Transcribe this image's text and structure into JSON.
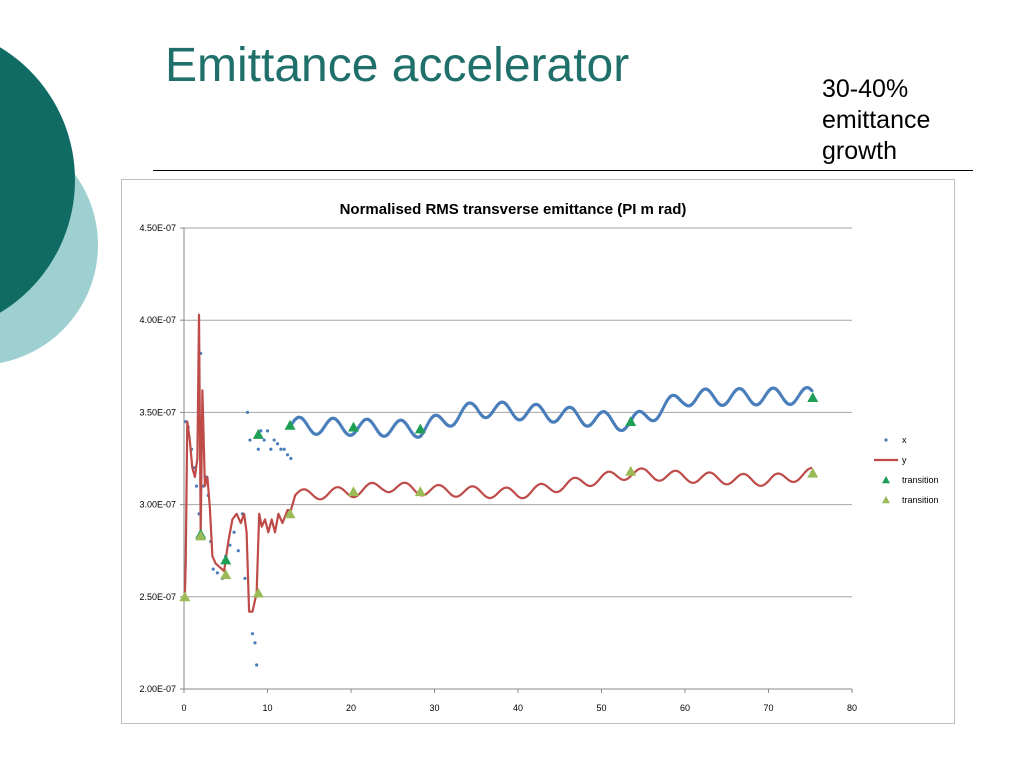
{
  "slide": {
    "title": "Emittance accelerator",
    "note_lines": [
      "30-40%",
      "emittance",
      "growth"
    ]
  },
  "theme": {
    "title_color": "#1f6f6b",
    "circle_dark": "#0f6b63",
    "circle_light": "#9fd0d1",
    "series_x_color": "#4a7ebb",
    "series_y_color": "#be4b48",
    "marker_dark": "#1f9f55",
    "marker_light": "#9bbb59"
  },
  "chart_data": {
    "type": "scatter",
    "title": "Normalised RMS transverse emittance (PI m rad)",
    "xlim": [
      0,
      80
    ],
    "ylim": [
      2e-07,
      4.5e-07
    ],
    "x_ticks": [
      "0",
      "10",
      "20",
      "30",
      "40",
      "50",
      "60",
      "70",
      "80"
    ],
    "y_ticks": [
      "2.00E-07",
      "2.50E-07",
      "3.00E-07",
      "3.50E-07",
      "4.00E-07",
      "4.50E-07"
    ],
    "grid": "horizontal",
    "legend_position": "right",
    "series": [
      {
        "name": "x",
        "style": "dots",
        "color": "#4a7ebb",
        "points": [
          [
            0.2,
            3.45e-07
          ],
          [
            0.5,
            3.42e-07
          ],
          [
            0.9,
            3.3e-07
          ],
          [
            1.2,
            3.2e-07
          ],
          [
            1.5,
            3.1e-07
          ],
          [
            1.8,
            2.95e-07
          ],
          [
            2.0,
            3.82e-07
          ],
          [
            2.3,
            3.1e-07
          ],
          [
            2.6,
            3.15e-07
          ],
          [
            2.9,
            3.05e-07
          ],
          [
            3.2,
            2.8e-07
          ],
          [
            3.5,
            2.65e-07
          ],
          [
            4.0,
            2.63e-07
          ],
          [
            4.6,
            2.6e-07
          ],
          [
            5.0,
            2.72e-07
          ],
          [
            5.5,
            2.78e-07
          ],
          [
            6.0,
            2.85e-07
          ],
          [
            6.5,
            2.75e-07
          ],
          [
            7.0,
            2.95e-07
          ],
          [
            7.3,
            2.6e-07
          ],
          [
            7.6,
            3.5e-07
          ],
          [
            7.9,
            3.35e-07
          ],
          [
            8.2,
            2.3e-07
          ],
          [
            8.5,
            2.25e-07
          ],
          [
            8.7,
            2.13e-07
          ],
          [
            8.9,
            3.3e-07
          ],
          [
            9.2,
            3.4e-07
          ],
          [
            9.6,
            3.35e-07
          ],
          [
            10.0,
            3.4e-07
          ],
          [
            10.4,
            3.3e-07
          ],
          [
            10.8,
            3.35e-07
          ],
          [
            11.2,
            3.33e-07
          ],
          [
            11.6,
            3.3e-07
          ],
          [
            12.0,
            3.3e-07
          ],
          [
            12.4,
            3.27e-07
          ],
          [
            12.8,
            3.25e-07
          ]
        ],
        "oscillation": {
          "from": 12.8,
          "to": 75.3,
          "anchors": [
            [
              12.8,
              3.43e-07
            ],
            [
              20.3,
              3.42e-07
            ],
            [
              28.3,
              3.41e-07
            ],
            [
              35,
              3.52e-07
            ],
            [
              45,
              3.49e-07
            ],
            [
              53.5,
              3.44e-07
            ],
            [
              60,
              3.58e-07
            ],
            [
              75.3,
              3.59e-07
            ]
          ],
          "amplitude": 4.5e-09
        }
      },
      {
        "name": "y",
        "style": "line",
        "color": "#be4b48",
        "points": [
          [
            0.1,
            2.5e-07
          ],
          [
            0.2,
            2.68e-07
          ],
          [
            0.4,
            3.45e-07
          ],
          [
            0.7,
            3.35e-07
          ],
          [
            1.0,
            3.2e-07
          ],
          [
            1.3,
            3.15e-07
          ],
          [
            1.6,
            3.25e-07
          ],
          [
            1.8,
            4.03e-07
          ],
          [
            2.0,
            2.85e-07
          ],
          [
            2.2,
            3.62e-07
          ],
          [
            2.5,
            3.1e-07
          ],
          [
            2.8,
            3.15e-07
          ],
          [
            3.1,
            2.98e-07
          ],
          [
            3.4,
            2.72e-07
          ],
          [
            3.8,
            2.68e-07
          ],
          [
            4.3,
            2.66e-07
          ],
          [
            4.8,
            2.64e-07
          ],
          [
            5.3,
            2.8e-07
          ],
          [
            5.8,
            2.92e-07
          ],
          [
            6.3,
            2.95e-07
          ],
          [
            6.8,
            2.9e-07
          ],
          [
            7.2,
            2.95e-07
          ],
          [
            7.5,
            2.85e-07
          ],
          [
            7.8,
            2.42e-07
          ],
          [
            8.2,
            2.42e-07
          ],
          [
            8.7,
            2.52e-07
          ],
          [
            9.0,
            2.95e-07
          ],
          [
            9.3,
            2.88e-07
          ],
          [
            9.7,
            2.92e-07
          ],
          [
            10.1,
            2.85e-07
          ],
          [
            10.5,
            2.92e-07
          ],
          [
            10.9,
            2.85e-07
          ],
          [
            11.3,
            2.95e-07
          ],
          [
            11.8,
            2.9e-07
          ],
          [
            12.4,
            2.97e-07
          ],
          [
            12.8,
            2.97e-07
          ],
          [
            13.3,
            3.05e-07
          ]
        ],
        "oscillation": {
          "from": 13.3,
          "to": 75.3,
          "anchors": [
            [
              13.3,
              3.05e-07
            ],
            [
              20.3,
              3.07e-07
            ],
            [
              24,
              3.1e-07
            ],
            [
              28.3,
              3.08e-07
            ],
            [
              40,
              3.06e-07
            ],
            [
              53.5,
              3.17e-07
            ],
            [
              60,
              3.15e-07
            ],
            [
              70,
              3.13e-07
            ],
            [
              75.3,
              3.17e-07
            ]
          ],
          "amplitude": 3e-09
        }
      },
      {
        "name": "transition",
        "style": "triangle",
        "color": "#1f9f55",
        "points": [
          [
            2.0,
            2.84e-07
          ],
          [
            5.0,
            2.7e-07
          ],
          [
            8.9,
            3.38e-07
          ],
          [
            12.7,
            3.43e-07
          ],
          [
            20.3,
            3.42e-07
          ],
          [
            28.3,
            3.41e-07
          ],
          [
            53.5,
            3.45e-07
          ],
          [
            75.3,
            3.58e-07
          ]
        ]
      },
      {
        "name": "transition",
        "style": "triangle",
        "color": "#9bbb59",
        "points": [
          [
            0.1,
            2.5e-07
          ],
          [
            2.0,
            2.83e-07
          ],
          [
            5.0,
            2.62e-07
          ],
          [
            8.9,
            2.52e-07
          ],
          [
            12.7,
            2.95e-07
          ],
          [
            20.3,
            3.07e-07
          ],
          [
            28.3,
            3.07e-07
          ],
          [
            53.5,
            3.18e-07
          ],
          [
            75.3,
            3.17e-07
          ]
        ]
      }
    ]
  }
}
